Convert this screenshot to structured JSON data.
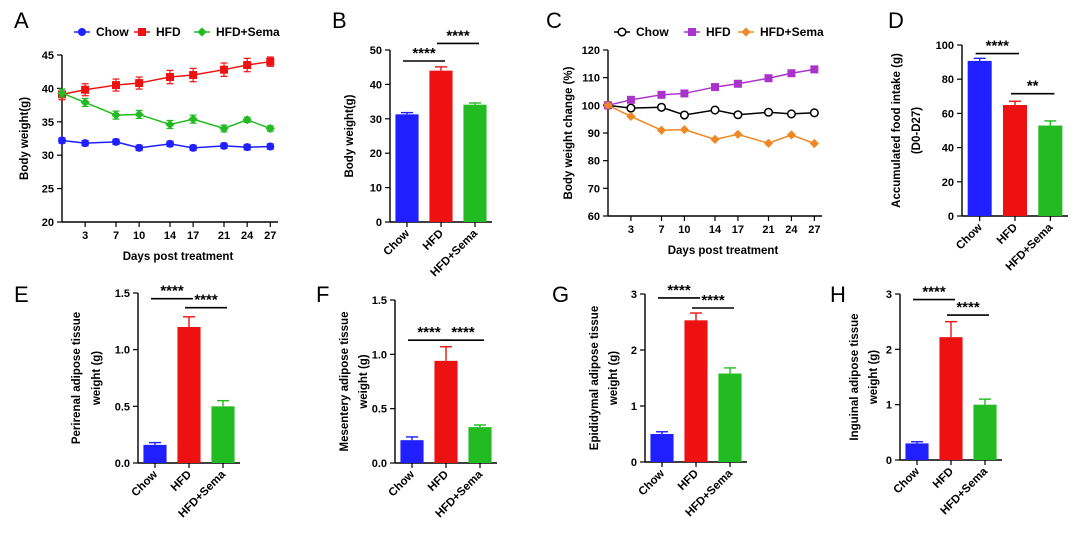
{
  "chart_data": [
    {
      "panel": "A",
      "type": "line",
      "xlabel": "Days post treatment",
      "ylabel": "Body weight(g)",
      "ylim": [
        20,
        45
      ],
      "yticks": [
        20,
        25,
        30,
        35,
        40,
        45
      ],
      "xticks": [
        3,
        7,
        10,
        14,
        17,
        21,
        24,
        27
      ],
      "xlim": [
        0,
        28
      ],
      "legend": "top",
      "x": [
        0,
        3,
        7,
        10,
        14,
        17,
        21,
        24,
        27
      ],
      "series": [
        {
          "name": "Chow",
          "color": "#1f1fff",
          "marker": "circle",
          "values": [
            32.2,
            31.8,
            32.0,
            31.1,
            31.7,
            31.1,
            31.4,
            31.2,
            31.3
          ],
          "err": [
            0.4,
            0.4,
            0.4,
            0.4,
            0.4,
            0.4,
            0.4,
            0.4,
            0.4
          ]
        },
        {
          "name": "HFD",
          "color": "#ee1111",
          "marker": "square",
          "values": [
            39.1,
            39.8,
            40.5,
            40.8,
            41.7,
            42.0,
            42.8,
            43.5,
            44.0
          ],
          "err": [
            0.8,
            0.9,
            0.9,
            0.9,
            1.0,
            1.0,
            1.0,
            1.0,
            0.7
          ]
        },
        {
          "name": "HFD+Sema",
          "color": "#22bb22",
          "marker": "diamond",
          "values": [
            39.3,
            37.9,
            36.0,
            36.1,
            34.6,
            35.4,
            34.0,
            35.3,
            34.0
          ],
          "err": [
            0.6,
            0.6,
            0.6,
            0.6,
            0.6,
            0.6,
            0.5,
            0.4,
            0.4
          ]
        }
      ]
    },
    {
      "panel": "B",
      "type": "bar",
      "ylabel": "Body weight(g)",
      "ylim": [
        0,
        50
      ],
      "yticks": [
        0,
        10,
        20,
        30,
        40,
        50
      ],
      "categories": [
        "Chow",
        "HFD",
        "HFD+Sema"
      ],
      "values": [
        31.3,
        44.0,
        34.1
      ],
      "err": [
        0.5,
        1.1,
        0.5
      ],
      "colors": [
        "#1f1fff",
        "#ee1111",
        "#22bb22"
      ],
      "sig": [
        {
          "from": 0,
          "to": 1,
          "label": "****",
          "y": 46.8
        },
        {
          "from": 1,
          "to": 2,
          "label": "****",
          "y": 51.9
        }
      ]
    },
    {
      "panel": "C",
      "type": "line",
      "xlabel": "Days post treatment",
      "ylabel": "Body weight change (%)",
      "ylim": [
        60,
        120
      ],
      "yticks": [
        60,
        70,
        80,
        90,
        100,
        110,
        120
      ],
      "xticks": [
        3,
        7,
        10,
        14,
        17,
        21,
        24,
        27
      ],
      "xlim": [
        0,
        28
      ],
      "legend": "top",
      "x": [
        0,
        3,
        7,
        10,
        14,
        17,
        21,
        24,
        27
      ],
      "series": [
        {
          "name": "Chow",
          "color": "#000000",
          "marker": "open-circle",
          "values": [
            100,
            99.0,
            99.3,
            96.5,
            98.3,
            96.6,
            97.5,
            96.9,
            97.3
          ]
        },
        {
          "name": "HFD",
          "color": "#aa33cc",
          "marker": "square",
          "values": [
            100,
            102.0,
            103.8,
            104.3,
            106.6,
            107.8,
            109.8,
            111.6,
            113.0
          ]
        },
        {
          "name": "HFD+Sema",
          "color": "#ee8822",
          "marker": "diamond",
          "values": [
            100,
            96.0,
            91.0,
            91.2,
            87.7,
            89.5,
            86.3,
            89.3,
            86.2
          ]
        }
      ]
    },
    {
      "panel": "D",
      "type": "bar",
      "ylabel": "Accumulated food intake (g) (D0-D27)",
      "ylabel_lines": [
        "Accumulated food intake (g)",
        "(D0-D27)"
      ],
      "ylim": [
        0,
        100
      ],
      "yticks": [
        0,
        20,
        40,
        60,
        80,
        100
      ],
      "categories": [
        "Chow",
        "HFD",
        "HFD+Sema"
      ],
      "values": [
        90.7,
        64.9,
        52.9
      ],
      "err": [
        1.5,
        2.2,
        2.7
      ],
      "colors": [
        "#1f1fff",
        "#ee1111",
        "#22bb22"
      ],
      "sig": [
        {
          "from": 0,
          "to": 1,
          "label": "****",
          "y": 95.0
        },
        {
          "from": 1,
          "to": 2,
          "label": "**",
          "y": 71.5
        }
      ]
    },
    {
      "panel": "E",
      "type": "bar",
      "ylabel_lines": [
        "Perirenal adipose tissue",
        "weight (g)"
      ],
      "ylim": [
        0,
        1.5
      ],
      "yticks": [
        0.0,
        0.5,
        1.0,
        1.5
      ],
      "ytick_labels": [
        "0.0",
        "0.5",
        "1.0",
        "1.5"
      ],
      "categories": [
        "Chow",
        "HFD",
        "HFD+Sema"
      ],
      "values": [
        0.16,
        1.2,
        0.5
      ],
      "err": [
        0.02,
        0.09,
        0.05
      ],
      "colors": [
        "#1f1fff",
        "#ee1111",
        "#22bb22"
      ],
      "sig": [
        {
          "from": 0,
          "to": 1,
          "label": "****",
          "y": 1.45
        },
        {
          "from": 1,
          "to": 2,
          "label": "****",
          "y": 1.37
        }
      ]
    },
    {
      "panel": "F",
      "type": "bar",
      "ylabel_lines": [
        "Mesentery adipose tissue",
        "weight (g)"
      ],
      "ylim": [
        0,
        1.5
      ],
      "yticks": [
        0.0,
        0.5,
        1.0,
        1.5
      ],
      "ytick_labels": [
        "0.0",
        "0.5",
        "1.0",
        "1.5"
      ],
      "categories": [
        "Chow",
        "HFD",
        "HFD+Sema"
      ],
      "values": [
        0.21,
        0.94,
        0.33
      ],
      "err": [
        0.03,
        0.13,
        0.02
      ],
      "colors": [
        "#1f1fff",
        "#ee1111",
        "#22bb22"
      ],
      "sig": [
        {
          "from": 0,
          "to": 1,
          "label": "****",
          "y": 1.13
        },
        {
          "from": 1,
          "to": 2,
          "label": "****",
          "y": 1.13
        }
      ]
    },
    {
      "panel": "G",
      "type": "bar",
      "ylabel_lines": [
        "Epididymal adipose tissue",
        "weight (g)"
      ],
      "ylim": [
        0,
        3
      ],
      "yticks": [
        0,
        1,
        2,
        3
      ],
      "categories": [
        "Chow",
        "HFD",
        "HFD+Sema"
      ],
      "values": [
        0.5,
        2.53,
        1.58
      ],
      "err": [
        0.04,
        0.13,
        0.1
      ],
      "colors": [
        "#1f1fff",
        "#ee1111",
        "#22bb22"
      ],
      "sig": [
        {
          "from": 0,
          "to": 1,
          "label": "****",
          "y": 2.93
        },
        {
          "from": 1,
          "to": 2,
          "label": "****",
          "y": 2.75
        }
      ]
    },
    {
      "panel": "H",
      "type": "bar",
      "ylabel_lines": [
        "Inguinal adipose tissue",
        "weight (g)"
      ],
      "ylim": [
        0,
        3
      ],
      "yticks": [
        0,
        1,
        2,
        3
      ],
      "categories": [
        "Chow",
        "HFD",
        "HFD+Sema"
      ],
      "values": [
        0.3,
        2.22,
        1.0
      ],
      "err": [
        0.03,
        0.28,
        0.1
      ],
      "colors": [
        "#1f1fff",
        "#ee1111",
        "#22bb22"
      ],
      "sig": [
        {
          "from": 0,
          "to": 1,
          "label": "****",
          "y": 2.9
        },
        {
          "from": 1,
          "to": 2,
          "label": "****",
          "y": 2.62
        }
      ]
    }
  ]
}
